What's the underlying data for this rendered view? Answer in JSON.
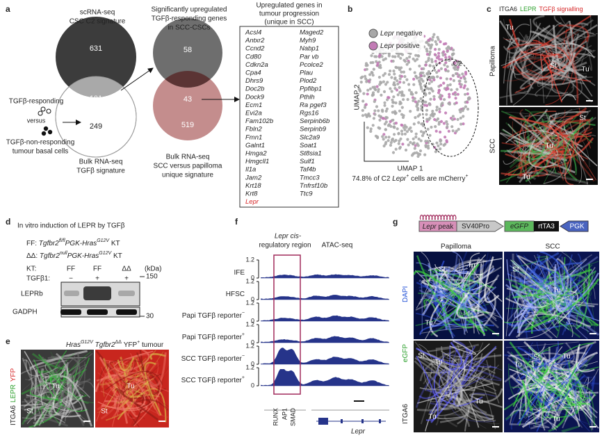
{
  "panel_a": {
    "letter": "a",
    "venn1": {
      "title": [
        "scRNA-seq",
        "CSC C2 signature"
      ],
      "top": 631,
      "overlap": 101,
      "bottom": 249,
      "bottom_title": [
        "Bulk RNA-seq",
        "TGFβ signature"
      ]
    },
    "comparison": [
      "TGFβ-responding",
      "versus",
      "TGFβ-non-responding",
      "tumour basal cells"
    ],
    "venn2": {
      "title": [
        "Significantly upregulated",
        "TGFβ-responding genes",
        "in SCC-CSCs"
      ],
      "top": 58,
      "overlap": 43,
      "bottom": 519,
      "bottom_title": [
        "Bulk RNA-seq",
        "SCC versus papilloma",
        "unique signature"
      ]
    },
    "gene_box": {
      "title": [
        "Upregulated genes in",
        "tumour progression",
        "(unique in SCC)"
      ],
      "column1": [
        "Acsl4",
        "Antxr2",
        "Ccnd2",
        "Cd80",
        "Cdkn2a",
        "Cpa4",
        "Dhrs9",
        "Doc2b",
        "Dock9",
        "Ecm1",
        "Evi2a",
        "Fam102b",
        "Fbln2",
        "Fmn1",
        "Galnt1",
        "Hmga2",
        "Hmgcll1",
        "Il1a",
        "Jam2",
        "Krt18",
        "Krt8",
        "Lepr"
      ],
      "column2": [
        "Maged2",
        "Myh9",
        "Nabp1",
        "Par vb",
        "Pcolce2",
        "Plau",
        "Plod2",
        "Ppfibp1",
        "Pthlh",
        "Ra pgef3",
        "Rgs16",
        "Serpinb6b",
        "Serpinb9",
        "Slc2a9",
        "Soat1",
        "St8sia1",
        "Sulf1",
        "Taf4b",
        "Tmcc3",
        "Tnfrsf10b",
        "Ttc9"
      ]
    }
  },
  "panel_b": {
    "letter": "b",
    "legend": [
      [
        "Lepr",
        " negative"
      ],
      [
        "Lepr",
        " positive"
      ]
    ],
    "colors": [
      "#a8a8a8",
      "#c27bb5"
    ],
    "cluster": "C2",
    "ylabel": "UMAP 2",
    "xlabel": "UMAP 1",
    "caption": [
      "74.8% of C2 ",
      "Lepr",
      "+",
      " cells are mCherry",
      "+"
    ]
  },
  "panel_c": {
    "letter": "c",
    "channels": [
      "ITGA6",
      "LEPR",
      "TGFβ signalling"
    ],
    "rows": [
      "Papilloma",
      "SCC"
    ],
    "labels_top": [
      "Tu",
      "St",
      "Tu"
    ],
    "labels_bottom": [
      "St",
      "Tu",
      "Tu"
    ]
  },
  "panel_d": {
    "letter": "d",
    "title": "In vitro induction of LEPR by TGFβ",
    "ff": [
      "FF: ",
      "Tgfbr2",
      "fl/fl",
      "PGK-Hras",
      "G12V",
      " KT"
    ],
    "dd": [
      "ΔΔ: ",
      "Tgfbr2",
      "null",
      "PGK-Hras",
      "G12V",
      " KT"
    ],
    "kt_label": "KT:",
    "kt": [
      "FF",
      "FF",
      "ΔΔ"
    ],
    "kda": "(kDa)",
    "tgf_label": "TGFβ1:",
    "tgf": [
      "−",
      "+",
      "+"
    ],
    "markers": [
      150,
      30
    ],
    "bands": [
      "LEPRb",
      "GADPH"
    ]
  },
  "panel_e": {
    "letter": "e",
    "title": [
      "Hras",
      "G12V",
      " Tgfbr2",
      "ΔΔ",
      " YFP",
      "+",
      " tumour"
    ],
    "channels": [
      "ITGA6",
      "LEPR",
      "YFP"
    ],
    "labels": [
      "Tu",
      "St",
      "Tu",
      "St"
    ]
  },
  "panel_f": {
    "letter": "f",
    "region": [
      "Lepr cis-",
      "regulatory region"
    ],
    "assay": "ATAC-seq",
    "tracks": [
      [
        "IFE"
      ],
      [
        "HFSC"
      ],
      [
        "Papi TGFβ reporter",
        "−"
      ],
      [
        "Papi TGFβ reporter",
        "+"
      ],
      [
        "SCC TGFβ reporter",
        "−"
      ],
      [
        "SCC TGFβ reporter",
        "+"
      ]
    ],
    "yticks": [
      0,
      1.2
    ],
    "motifs": [
      "RUNX",
      "AP1",
      "SMAD"
    ],
    "gene": "Lepr"
  },
  "panel_g": {
    "letter": "g",
    "construct": {
      "peak": [
        "Lepr",
        " peak"
      ],
      "promoter": "SV40Pro",
      "reporter": "eGFP",
      "transactivator": "rtTA3",
      "pgk": "PGK"
    },
    "columns": [
      "Papilloma",
      "SCC"
    ],
    "channels": [
      "ITGA6",
      "eGFP",
      "DAPI"
    ],
    "labels": {
      "pap_top": [
        "St",
        "Tu",
        "Tu"
      ],
      "scc_top": [
        "St",
        "Tu"
      ],
      "pap_bottom": [
        "St",
        "Tu",
        "Tu",
        "Tu"
      ],
      "scc_bottom": [
        "Tu",
        "St",
        "Tu",
        "Tu"
      ]
    }
  }
}
